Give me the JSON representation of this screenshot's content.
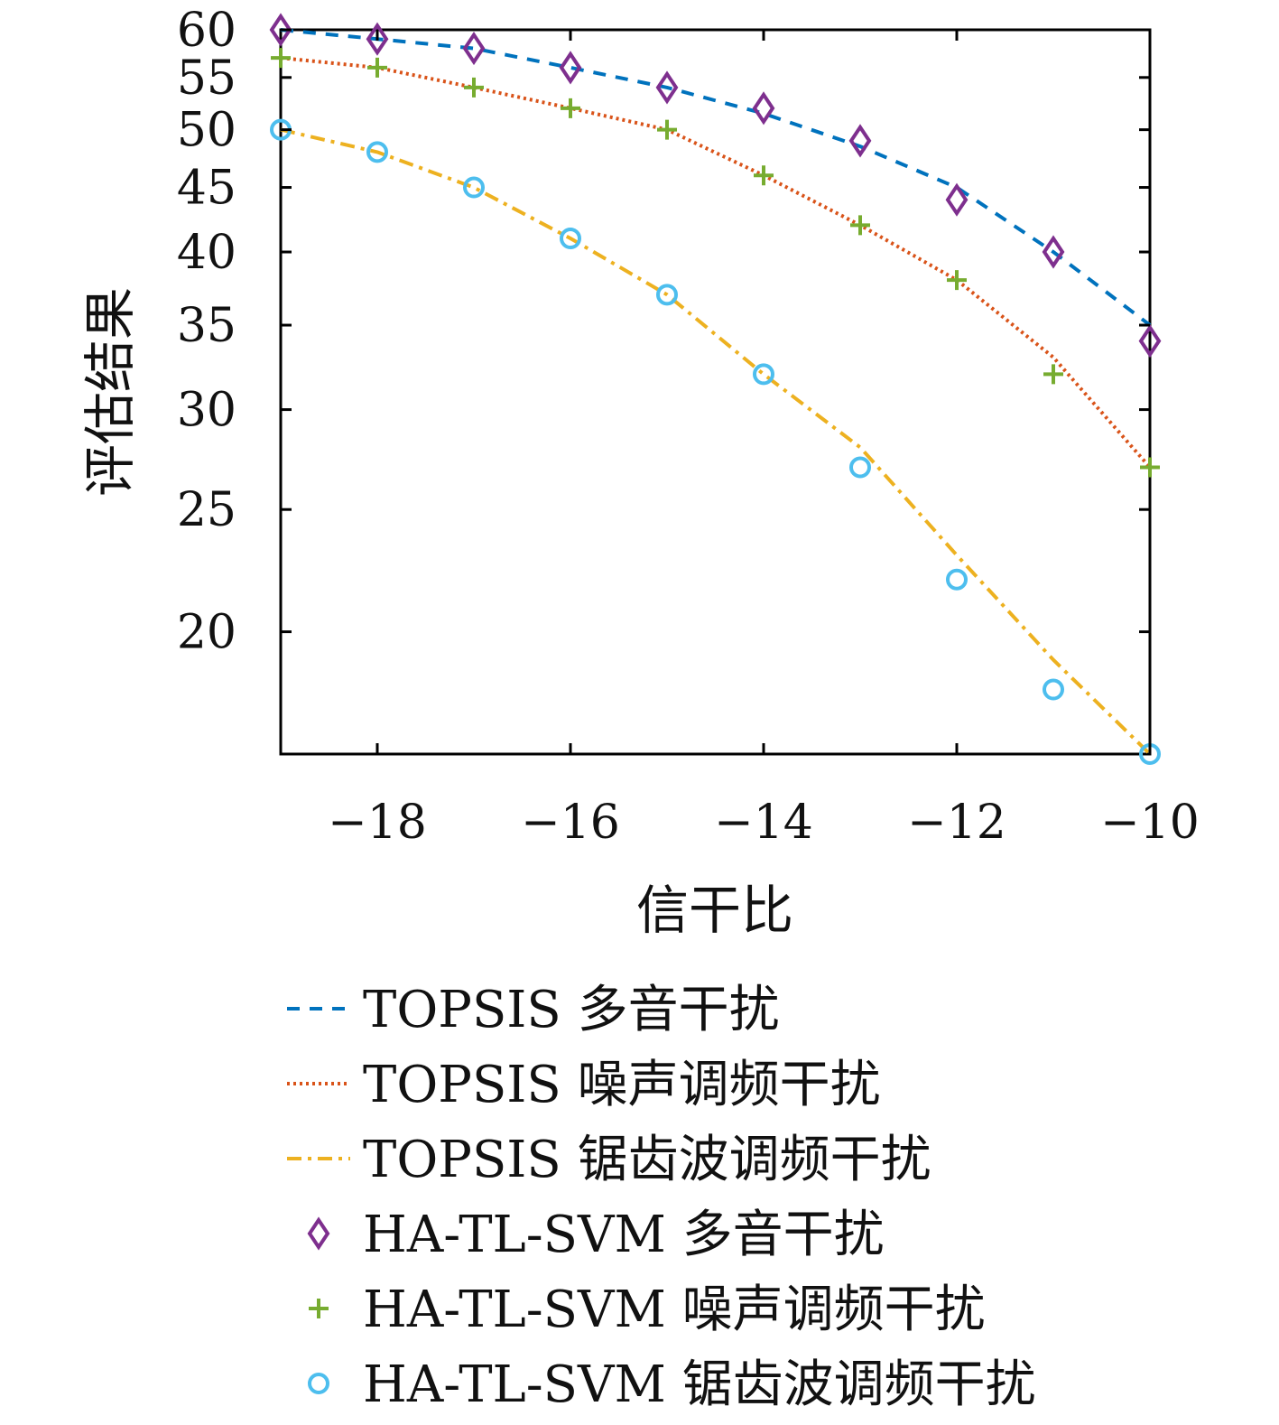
{
  "chart_data": {
    "type": "line",
    "xlabel": "信干比",
    "ylabel": "评估结果",
    "xlim": [
      -19,
      -10
    ],
    "ylim": [
      16,
      60
    ],
    "yscale": "log",
    "x_ticks": [
      -18,
      -16,
      -14,
      -12,
      -10
    ],
    "x_tick_labels": [
      "−18",
      "−16",
      "−14",
      "−12",
      "−10"
    ],
    "y_ticks": [
      20,
      25,
      30,
      35,
      40,
      45,
      50,
      55,
      60
    ],
    "y_tick_labels": [
      "20",
      "25",
      "30",
      "35",
      "40",
      "45",
      "50",
      "55",
      "60"
    ],
    "grid": false,
    "legend_position": "below",
    "x": [
      -19,
      -18,
      -17,
      -16,
      -15,
      -14,
      -13,
      -12,
      -11,
      -10
    ],
    "series": [
      {
        "name": "TOPSIS 多音干扰",
        "style": "dashed-line",
        "color": "#0072BD",
        "values": [
          60,
          59,
          58,
          56,
          54,
          51.5,
          48.5,
          45,
          40,
          35
        ]
      },
      {
        "name": "TOPSIS 噪声调频干扰",
        "style": "dotted-line",
        "color": "#D95319",
        "values": [
          57,
          56,
          54,
          52,
          50,
          46,
          42,
          38,
          33,
          27
        ]
      },
      {
        "name": "TOPSIS 锯齿波调频干扰",
        "style": "dashdot-line",
        "color": "#EDB120",
        "values": [
          50,
          48,
          45,
          41,
          37,
          32,
          28,
          23,
          19,
          16
        ]
      },
      {
        "name": "HA-TL-SVM 多音干扰",
        "style": "diamond-markers",
        "color": "#7E2F8E",
        "values": [
          60,
          59,
          58,
          56,
          54,
          52,
          49,
          44,
          40,
          34
        ]
      },
      {
        "name": "HA-TL-SVM 噪声调频干扰",
        "style": "plus-markers",
        "color": "#77AC30",
        "values": [
          57,
          56,
          54,
          52,
          50,
          46,
          42,
          38,
          32,
          27
        ]
      },
      {
        "name": "HA-TL-SVM 锯齿波调频干扰",
        "style": "circle-markers",
        "color": "#4DBEEE",
        "values": [
          50,
          48,
          45,
          41,
          37,
          32,
          27,
          22,
          18,
          16
        ]
      }
    ]
  }
}
